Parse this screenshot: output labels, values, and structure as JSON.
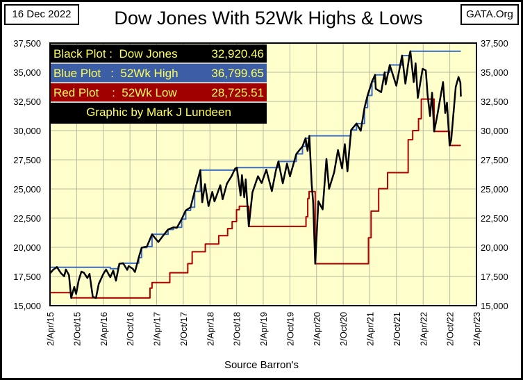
{
  "header": {
    "date": "16 Dec 2022",
    "title": "Dow Jones With 52Wk Highs & Lows",
    "site": "GATA.Org"
  },
  "legend": [
    {
      "label": "Black Plot :  Dow Jones",
      "value": "32,920.46",
      "bg": "#000000"
    },
    {
      "label": "Blue Plot   :  52Wk High",
      "value": "36,799.65",
      "bg": "#3b5ea6"
    },
    {
      "label": "Red Plot    :  52Wk Low",
      "value": "28,725.51",
      "bg": "#a00000"
    }
  ],
  "credit": "Graphic by Mark J Lundeen",
  "source": "Source Barron's",
  "chart_data": {
    "type": "line",
    "title": "Dow Jones With 52Wk Highs & Lows",
    "xlabel": "Source Barron's",
    "ylabel": "",
    "ylim": [
      15000,
      37500
    ],
    "xlim": [
      "2015-04-02",
      "2023-04-02"
    ],
    "grid": true,
    "legend_position": "top-left",
    "background": "#ffffcc",
    "yticks": [
      "15,000",
      "17,500",
      "20,000",
      "22,500",
      "25,000",
      "27,500",
      "30,000",
      "32,500",
      "35,000",
      "37,500"
    ],
    "xticks": [
      "2/Apr/15",
      "2/Oct/15",
      "2/Apr/16",
      "2/Oct/16",
      "2/Apr/17",
      "2/Oct/17",
      "2/Apr/18",
      "2/Oct/18",
      "2/Apr/19",
      "2/Oct/19",
      "2/Apr/20",
      "2/Oct/20",
      "2/Apr/21",
      "2/Oct/21",
      "2/Apr/22",
      "2/Oct/22",
      "2/Apr/23"
    ],
    "series": [
      {
        "name": "Dow Jones",
        "color": "#000000",
        "step": false,
        "points": [
          [
            "2015-04-02",
            17763
          ],
          [
            "2015-04-24",
            18080
          ],
          [
            "2015-05-19",
            18312
          ],
          [
            "2015-06-15",
            17800
          ],
          [
            "2015-07-08",
            17515
          ],
          [
            "2015-07-20",
            18100
          ],
          [
            "2015-08-10",
            17615
          ],
          [
            "2015-08-25",
            15666
          ],
          [
            "2015-09-15",
            16600
          ],
          [
            "2015-09-28",
            16001
          ],
          [
            "2015-10-15",
            17141
          ],
          [
            "2015-11-03",
            17918
          ],
          [
            "2015-11-20",
            17823
          ],
          [
            "2015-12-14",
            17368
          ],
          [
            "2015-12-29",
            17720
          ],
          [
            "2016-01-20",
            15766
          ],
          [
            "2016-02-11",
            15660
          ],
          [
            "2016-03-01",
            16865
          ],
          [
            "2016-03-31",
            17685
          ],
          [
            "2016-04-20",
            18096
          ],
          [
            "2016-05-19",
            17436
          ],
          [
            "2016-06-08",
            18005
          ],
          [
            "2016-06-27",
            17140
          ],
          [
            "2016-07-20",
            18595
          ],
          [
            "2016-08-15",
            18636
          ],
          [
            "2016-09-12",
            18066
          ],
          [
            "2016-09-22",
            18392
          ],
          [
            "2016-10-20",
            18162
          ],
          [
            "2016-11-04",
            17888
          ],
          [
            "2016-11-30",
            19124
          ],
          [
            "2016-12-20",
            19974
          ],
          [
            "2017-01-25",
            20069
          ],
          [
            "2017-03-01",
            21115
          ],
          [
            "2017-04-13",
            20453
          ],
          [
            "2017-05-16",
            21000
          ],
          [
            "2017-06-19",
            21528
          ],
          [
            "2017-07-26",
            21711
          ],
          [
            "2017-08-18",
            21675
          ],
          [
            "2017-09-20",
            22412
          ],
          [
            "2017-10-18",
            23157
          ],
          [
            "2017-11-20",
            23430
          ],
          [
            "2017-12-18",
            24792
          ],
          [
            "2018-01-26",
            26617
          ],
          [
            "2018-02-08",
            23860
          ],
          [
            "2018-02-27",
            25410
          ],
          [
            "2018-03-23",
            23533
          ],
          [
            "2018-04-18",
            24748
          ],
          [
            "2018-05-03",
            23930
          ],
          [
            "2018-06-12",
            25320
          ],
          [
            "2018-06-28",
            24117
          ],
          [
            "2018-07-27",
            25451
          ],
          [
            "2018-08-29",
            26124
          ],
          [
            "2018-09-21",
            26743
          ],
          [
            "2018-10-03",
            26828
          ],
          [
            "2018-10-29",
            24443
          ],
          [
            "2018-11-07",
            26180
          ],
          [
            "2018-11-23",
            24286
          ],
          [
            "2018-12-03",
            25826
          ],
          [
            "2018-12-24",
            21792
          ],
          [
            "2019-01-18",
            24706
          ],
          [
            "2019-02-25",
            26091
          ],
          [
            "2019-03-22",
            25502
          ],
          [
            "2019-04-23",
            26656
          ],
          [
            "2019-05-31",
            24815
          ],
          [
            "2019-06-28",
            26600
          ],
          [
            "2019-07-15",
            27359
          ],
          [
            "2019-08-14",
            25479
          ],
          [
            "2019-09-12",
            27182
          ],
          [
            "2019-10-02",
            26079
          ],
          [
            "2019-11-15",
            28005
          ],
          [
            "2019-12-27",
            28645
          ],
          [
            "2020-01-17",
            29348
          ],
          [
            "2020-01-31",
            28256
          ],
          [
            "2020-02-12",
            29551
          ],
          [
            "2020-02-28",
            25409
          ],
          [
            "2020-03-09",
            23851
          ],
          [
            "2020-03-23",
            18591
          ],
          [
            "2020-04-14",
            23949
          ],
          [
            "2020-05-13",
            23248
          ],
          [
            "2020-06-08",
            27572
          ],
          [
            "2020-06-26",
            25016
          ],
          [
            "2020-07-31",
            26428
          ],
          [
            "2020-08-26",
            28331
          ],
          [
            "2020-09-23",
            26763
          ],
          [
            "2020-10-12",
            28837
          ],
          [
            "2020-10-30",
            26501
          ],
          [
            "2020-11-24",
            30046
          ],
          [
            "2020-12-31",
            30606
          ],
          [
            "2021-01-29",
            29983
          ],
          [
            "2021-02-24",
            31961
          ],
          [
            "2021-03-17",
            33015
          ],
          [
            "2021-04-16",
            34200
          ],
          [
            "2021-05-07",
            34778
          ],
          [
            "2021-05-12",
            33587
          ],
          [
            "2021-06-18",
            33290
          ],
          [
            "2021-07-12",
            34996
          ],
          [
            "2021-07-19",
            33962
          ],
          [
            "2021-08-16",
            35625
          ],
          [
            "2021-09-30",
            33843
          ],
          [
            "2021-11-08",
            36432
          ],
          [
            "2021-12-01",
            34022
          ],
          [
            "2021-12-29",
            36488
          ],
          [
            "2022-01-04",
            36799
          ],
          [
            "2022-01-27",
            34160
          ],
          [
            "2022-02-09",
            35768
          ],
          [
            "2022-02-24",
            32800
          ],
          [
            "2022-03-29",
            35294
          ],
          [
            "2022-04-20",
            35160
          ],
          [
            "2022-05-02",
            33061
          ],
          [
            "2022-05-19",
            31253
          ],
          [
            "2022-06-02",
            33248
          ],
          [
            "2022-06-16",
            29927
          ],
          [
            "2022-07-08",
            31338
          ],
          [
            "2022-08-16",
            34152
          ],
          [
            "2022-08-31",
            31510
          ],
          [
            "2022-09-12",
            32381
          ],
          [
            "2022-09-30",
            28725
          ],
          [
            "2022-10-11",
            29210
          ],
          [
            "2022-11-11",
            33748
          ],
          [
            "2022-11-30",
            34590
          ],
          [
            "2022-12-13",
            34108
          ],
          [
            "2022-12-16",
            32920
          ]
        ]
      },
      {
        "name": "52Wk High",
        "color": "#3b6cc0",
        "step": true,
        "points": [
          [
            "2015-04-02",
            18288
          ],
          [
            "2016-05-19",
            18167
          ],
          [
            "2016-07-12",
            18347
          ],
          [
            "2016-07-20",
            18595
          ],
          [
            "2016-08-15",
            18636
          ],
          [
            "2016-11-30",
            19124
          ],
          [
            "2016-12-20",
            19974
          ],
          [
            "2017-01-25",
            20069
          ],
          [
            "2017-03-01",
            21115
          ],
          [
            "2017-06-19",
            21528
          ],
          [
            "2017-07-26",
            21711
          ],
          [
            "2017-09-20",
            22412
          ],
          [
            "2017-10-18",
            23157
          ],
          [
            "2017-11-20",
            23430
          ],
          [
            "2017-12-18",
            24792
          ],
          [
            "2018-01-26",
            26617
          ],
          [
            "2018-10-03",
            26828
          ],
          [
            "2019-07-15",
            27359
          ],
          [
            "2019-11-15",
            28005
          ],
          [
            "2019-12-27",
            28645
          ],
          [
            "2020-01-17",
            29348
          ],
          [
            "2020-02-12",
            29551
          ],
          [
            "2020-11-24",
            30046
          ],
          [
            "2020-12-31",
            30606
          ],
          [
            "2021-02-24",
            31961
          ],
          [
            "2021-03-17",
            33015
          ],
          [
            "2021-04-16",
            34200
          ],
          [
            "2021-05-07",
            34778
          ],
          [
            "2021-07-12",
            34996
          ],
          [
            "2021-08-16",
            35625
          ],
          [
            "2021-11-08",
            36432
          ],
          [
            "2021-12-29",
            36488
          ],
          [
            "2022-01-04",
            36799
          ],
          [
            "2022-12-16",
            36799
          ]
        ]
      },
      {
        "name": "52Wk Low",
        "color": "#b00000",
        "step": true,
        "points": [
          [
            "2015-04-02",
            16117
          ],
          [
            "2015-08-25",
            15666
          ],
          [
            "2016-02-11",
            15660
          ],
          [
            "2017-02-15",
            16500
          ],
          [
            "2017-03-01",
            16980
          ],
          [
            "2017-07-01",
            17820
          ],
          [
            "2017-11-01",
            18600
          ],
          [
            "2017-12-01",
            19620
          ],
          [
            "2018-03-01",
            20280
          ],
          [
            "2018-06-01",
            21000
          ],
          [
            "2018-08-01",
            21600
          ],
          [
            "2018-09-01",
            22200
          ],
          [
            "2018-10-01",
            23220
          ],
          [
            "2018-10-20",
            23520
          ],
          [
            "2018-12-24",
            21792
          ],
          [
            "2020-01-20",
            22620
          ],
          [
            "2020-02-01",
            24180
          ],
          [
            "2020-02-10",
            24780
          ],
          [
            "2020-03-23",
            18591
          ],
          [
            "2021-03-23",
            20820
          ],
          [
            "2021-04-10",
            23100
          ],
          [
            "2021-06-01",
            25020
          ],
          [
            "2021-08-01",
            26400
          ],
          [
            "2021-12-20",
            29220
          ],
          [
            "2022-01-20",
            30000
          ],
          [
            "2022-03-01",
            31020
          ],
          [
            "2022-03-20",
            32700
          ],
          [
            "2022-06-16",
            29927
          ],
          [
            "2022-09-30",
            28725
          ],
          [
            "2022-12-16",
            28725
          ]
        ]
      }
    ]
  }
}
